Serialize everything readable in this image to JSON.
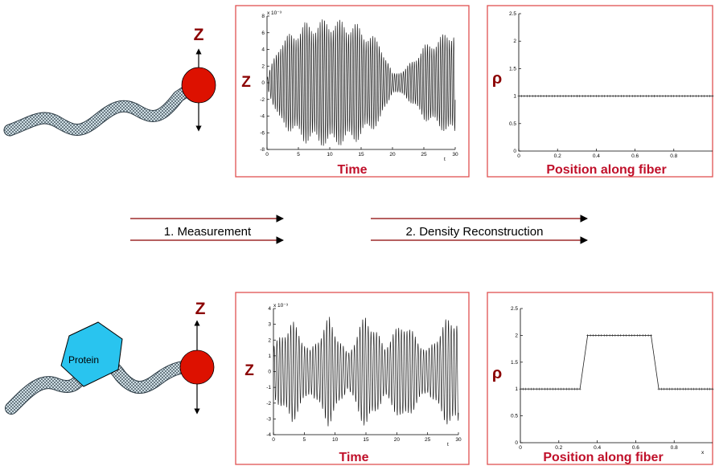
{
  "steps": {
    "measurement": "1. Measurement",
    "reconstruction": "2. Density Reconstruction"
  },
  "labels": {
    "z": "Z",
    "rho": "ρ",
    "time": "Time",
    "position": "Position along fiber",
    "protein": "Protein",
    "t": "t",
    "x": "x"
  },
  "colors": {
    "bead": "#dd1100",
    "protein": "#29c4ef",
    "frame": "#e05050",
    "title": "#c0102a",
    "variable": "#8b0000"
  },
  "chart_data": [
    {
      "id": "top-time",
      "type": "line",
      "xlabel": "Time",
      "ylabel": "Z",
      "exponent": "x 10⁻³",
      "xlim": [
        0,
        30
      ],
      "ylim": [
        -8,
        8
      ],
      "xticks": [
        "0",
        "5",
        "10",
        "15",
        "20",
        "25",
        "30"
      ],
      "yticks": [
        "-8",
        "-6",
        "-4",
        "-2",
        "0",
        "2",
        "4",
        "6",
        "8"
      ],
      "axis_var": "t",
      "signal": {
        "omega": 18.0,
        "envelope": [
          [
            0,
            0.5
          ],
          [
            2,
            4.5
          ],
          [
            6,
            6.5
          ],
          [
            10,
            7.0
          ],
          [
            14,
            6.5
          ],
          [
            18,
            4.5
          ],
          [
            20,
            1.0
          ],
          [
            22,
            1.5
          ],
          [
            25,
            4.0
          ],
          [
            30,
            6.0
          ]
        ]
      }
    },
    {
      "id": "top-density",
      "type": "line",
      "xlabel": "Position along fiber",
      "ylabel": "ρ",
      "xlim": [
        0,
        1
      ],
      "ylim": [
        0,
        2.5
      ],
      "xticks": [
        "0",
        "0.2",
        "0.4",
        "0.6",
        "0.8"
      ],
      "yticks": [
        "0",
        "0.5",
        "1",
        "1.5",
        "2",
        "2.5"
      ],
      "points": [
        [
          0,
          1.0
        ],
        [
          0.3,
          1.0
        ],
        [
          0.7,
          1.0
        ],
        [
          1.0,
          1.0
        ]
      ]
    },
    {
      "id": "bottom-time",
      "type": "line",
      "xlabel": "Time",
      "ylabel": "Z",
      "exponent": "x 10⁻³",
      "xlim": [
        0,
        30
      ],
      "ylim": [
        -4,
        4
      ],
      "xticks": [
        "0",
        "5",
        "10",
        "15",
        "20",
        "25",
        "30"
      ],
      "yticks": [
        "-4",
        "-3",
        "-2",
        "-1",
        "0",
        "1",
        "2",
        "3",
        "4"
      ],
      "axis_var": "t",
      "signal": {
        "omega": 14.0,
        "envelope": [
          [
            0,
            1.5
          ],
          [
            3,
            3.0
          ],
          [
            6,
            1.2
          ],
          [
            9,
            3.2
          ],
          [
            12,
            1.0
          ],
          [
            15,
            3.4
          ],
          [
            18,
            1.5
          ],
          [
            21,
            3.0
          ],
          [
            25,
            1.2
          ],
          [
            28,
            3.0
          ],
          [
            30,
            3.2
          ]
        ]
      }
    },
    {
      "id": "bottom-density",
      "type": "line",
      "xlabel": "Position along fiber",
      "ylabel": "ρ",
      "xlim": [
        0,
        1
      ],
      "ylim": [
        0,
        2.5
      ],
      "xticks": [
        "0",
        "0.2",
        "0.4",
        "0.6",
        "0.8"
      ],
      "yticks": [
        "0",
        "0.5",
        "1",
        "1.5",
        "2",
        "2.5"
      ],
      "axis_var": "x",
      "points": [
        [
          0,
          1.0
        ],
        [
          0.31,
          1.0
        ],
        [
          0.35,
          2.0
        ],
        [
          0.68,
          2.0
        ],
        [
          0.72,
          1.0
        ],
        [
          1.0,
          1.0
        ]
      ]
    }
  ]
}
